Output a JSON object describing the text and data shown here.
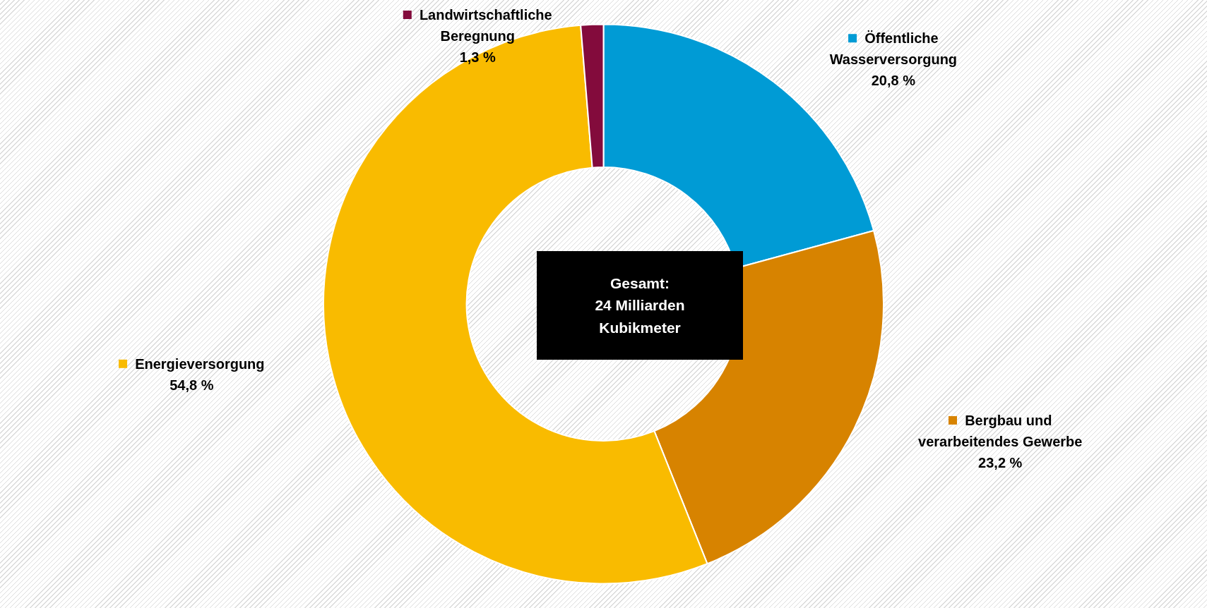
{
  "chart_data": {
    "type": "donut",
    "categories": [
      "Öffentliche Wasserversorgung",
      "Bergbau und verarbeitendes Gewerbe",
      "Energieversorgung",
      "Landwirtschaftliche Beregnung"
    ],
    "values": [
      20.8,
      23.2,
      54.8,
      1.3
    ],
    "colors": [
      "#009bd5",
      "#d78300",
      "#f9bb00",
      "#830b3c"
    ],
    "value_labels": [
      "20,8 %",
      "23,2 %",
      "54,8 %",
      "1,3 %"
    ],
    "legend": "right",
    "annotations": [
      "Gesamt:\n24 Milliarden\nKubikmeter"
    ]
  }
}
